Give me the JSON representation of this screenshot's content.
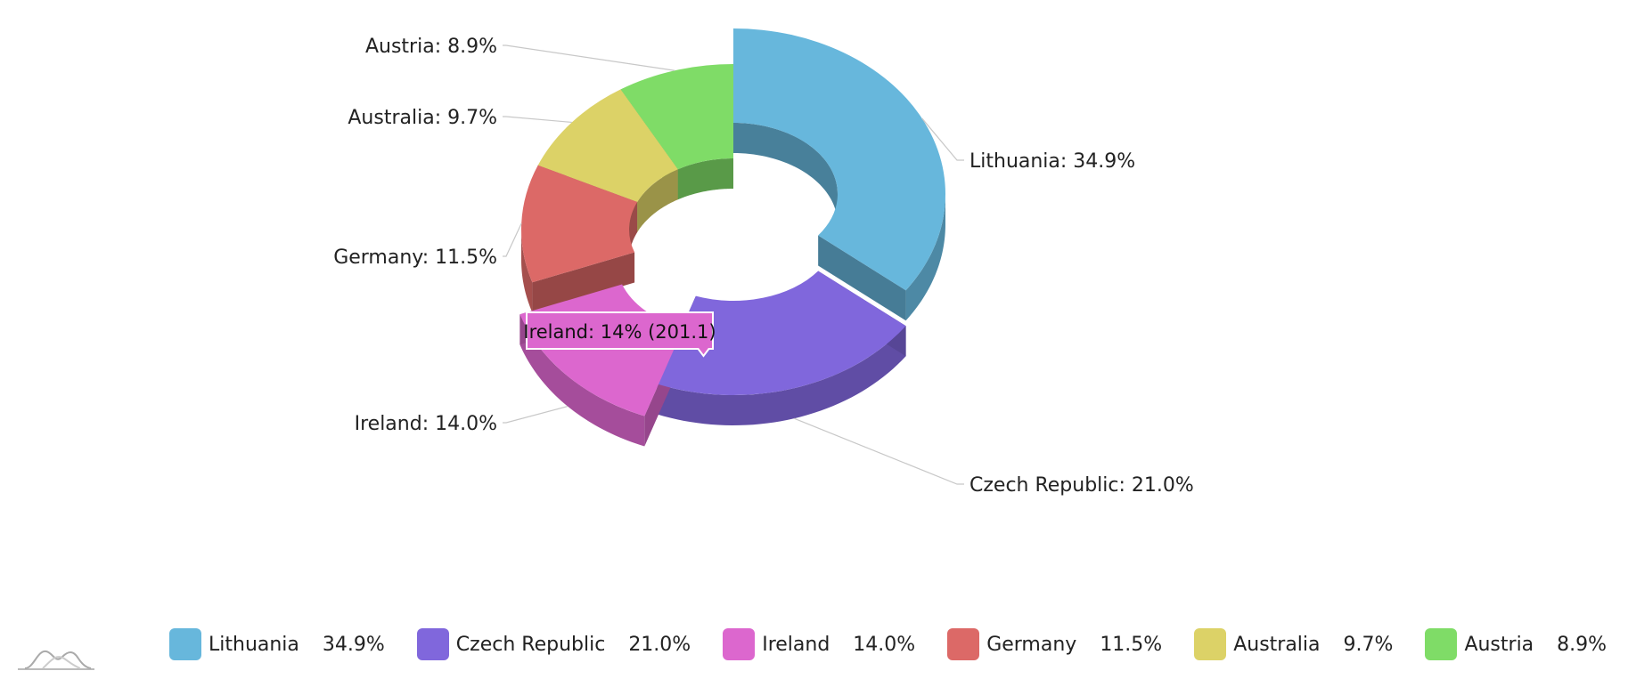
{
  "chart_data": {
    "type": "pie",
    "variant": "3d-donut",
    "slices": [
      {
        "name": "Lithuania",
        "value": 501.9,
        "percent": "34.9%",
        "label": "Lithuania: 34.9%",
        "color": "#67b7dc",
        "pulled_out": true
      },
      {
        "name": "Czech Republic",
        "value": 301.9,
        "percent": "21.0%",
        "label": "Czech Republic: 21.0%",
        "color": "#8067dc"
      },
      {
        "name": "Ireland",
        "value": 201.1,
        "percent": "14.0%",
        "label": "Ireland: 14.0%",
        "color": "#dc67ce",
        "pulled_out": true
      },
      {
        "name": "Germany",
        "value": 165.8,
        "percent": "11.5%",
        "label": "Germany: 11.5%",
        "color": "#dc6967"
      },
      {
        "name": "Australia",
        "value": 139.9,
        "percent": "9.7%",
        "label": "Australia: 9.7%",
        "color": "#dcd267"
      },
      {
        "name": "Austria",
        "value": 128.3,
        "percent": "8.9%",
        "label": "Austria: 8.9%",
        "color": "#7fdc67"
      }
    ],
    "tooltip": {
      "slice": "Ireland",
      "text": "Ireland: 14% (201.1)"
    },
    "legend_position": "bottom"
  }
}
